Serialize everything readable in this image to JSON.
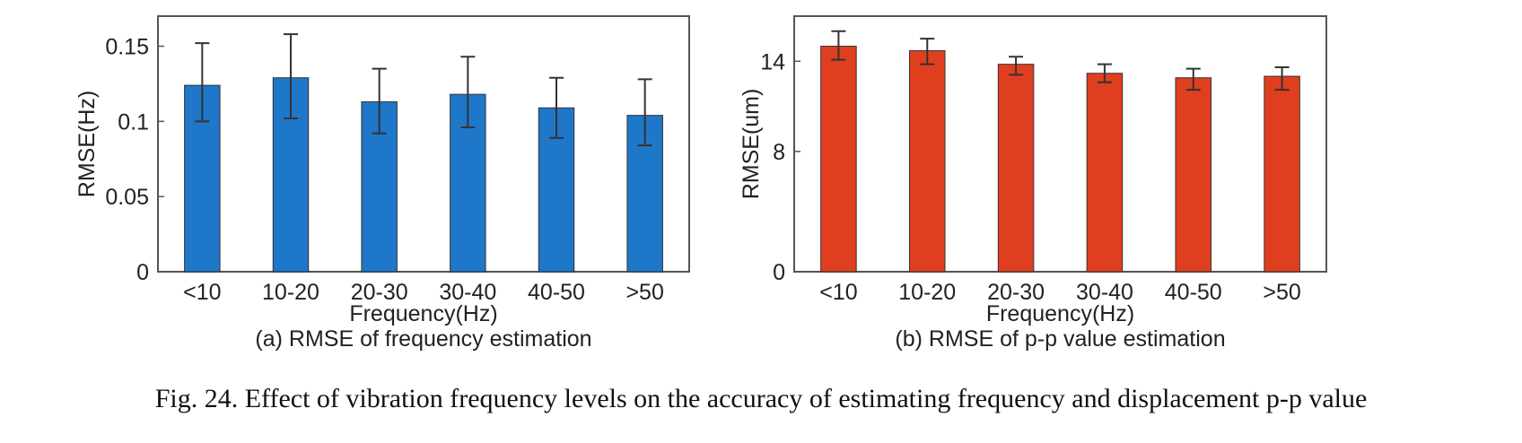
{
  "chart_data": [
    {
      "type": "bar",
      "categories": [
        "<10",
        "10-20",
        "20-30",
        "30-40",
        "40-50",
        ">50"
      ],
      "values": [
        0.124,
        0.129,
        0.113,
        0.118,
        0.109,
        0.104
      ],
      "error_low": [
        0.1,
        0.102,
        0.092,
        0.096,
        0.089,
        0.084
      ],
      "error_high": [
        0.152,
        0.158,
        0.135,
        0.143,
        0.129,
        0.128
      ],
      "ylim": [
        0,
        0.17
      ],
      "yticks": [
        0,
        0.05,
        0.1,
        0.15
      ],
      "ytick_labels": [
        "0",
        "0.05",
        "0.1",
        "0.15"
      ],
      "xlabel": "Frequency(Hz)",
      "ylabel": "RMSE(Hz)",
      "caption": "(a) RMSE of frequency estimation",
      "color": "#1f77c9"
    },
    {
      "type": "bar",
      "categories": [
        "<10",
        "10-20",
        "20-30",
        "30-40",
        "40-50",
        ">50"
      ],
      "values": [
        15.0,
        14.7,
        13.8,
        13.2,
        12.9,
        13.0
      ],
      "error_low": [
        14.1,
        13.8,
        13.1,
        12.6,
        12.1,
        12.1
      ],
      "error_high": [
        16.0,
        15.5,
        14.3,
        13.8,
        13.5,
        13.6
      ],
      "ylim": [
        0,
        17
      ],
      "yticks": [
        0,
        8,
        14
      ],
      "ytick_labels": [
        "0",
        "8",
        "14"
      ],
      "xlabel": "Frequency(Hz)",
      "ylabel": "RMSE(um)",
      "caption": "(b) RMSE of p-p value estimation",
      "color": "#e03f1f"
    }
  ],
  "figure_caption": "Fig. 24.  Effect of vibration frequency levels on the accuracy of estimating frequency and displacement p-p value"
}
